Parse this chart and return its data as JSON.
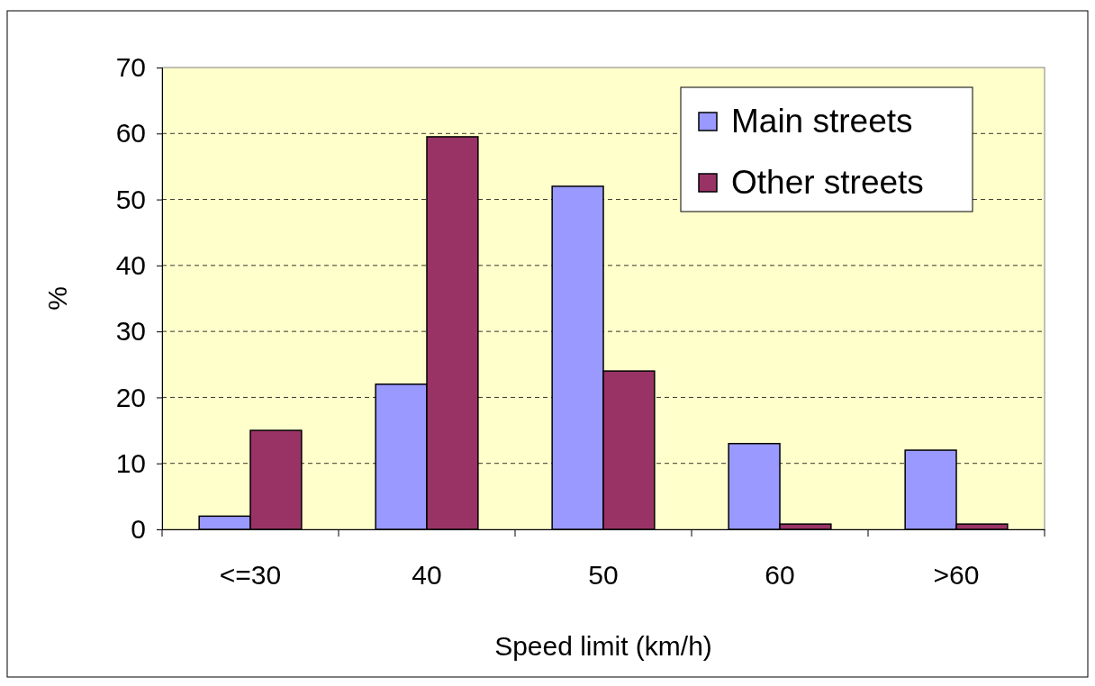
{
  "chart_data": {
    "type": "bar",
    "xlabel": "Speed limit (km/h)",
    "ylabel": "%",
    "categories": [
      "<=30",
      "40",
      "50",
      "60",
      ">60"
    ],
    "series": [
      {
        "name": "Main streets",
        "color": "#9999ff",
        "values": [
          2,
          22,
          52,
          13,
          12
        ]
      },
      {
        "name": "Other streets",
        "color": "#993366",
        "values": [
          15,
          59.5,
          24,
          0.8,
          0.8
        ]
      }
    ],
    "ylim": [
      0,
      70
    ],
    "yticks": [
      0,
      10,
      20,
      30,
      40,
      50,
      60,
      70
    ],
    "grid": "y",
    "legend": "top right"
  }
}
